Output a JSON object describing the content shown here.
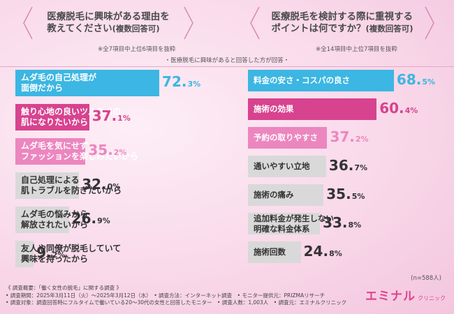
{
  "left": {
    "question_line1": "医療脱毛に興味がある理由を",
    "question_line2": "教えてください",
    "question_suffix": "(複数回答可)",
    "note": "※全7項目中上位6項目を抜粋"
  },
  "right": {
    "question_line1": "医療脱毛を検討する際に重視する",
    "question_line2": "ポイントは何ですか？",
    "question_suffix": "(複数回答可)",
    "note": "※全14項目中上位7項目を抜粋"
  },
  "respondent_note": "・医療脱毛に興味があると回答した方が回答・",
  "n_label": "(n=588人)",
  "footer": {
    "line1": "《 調査概要：「働く女性の脱毛」に関する調査 》",
    "line2": "• 調査期間：2025年3月11日（火）～2025年3月12日（水）　• 調査方法：インターネット調査　• モニター提供元：PRIZMAリサーチ",
    "line3": "• 調査対象：調査回答時にフルタイムで働いている20～30代の女性と回答したモニター　• 調査人数：1,003人　• 調査元：エミナルクリニック"
  },
  "logo": {
    "main": "エミナル",
    "sub": "クリニック"
  },
  "colors": {
    "blue": "#3cb6e2",
    "pink_dark": "#d7438f",
    "pink_light": "#ec86bf",
    "gray": "#d9d9d9",
    "accent": "#e0428f"
  },
  "chart_data": [
    {
      "type": "bar",
      "orientation": "horizontal",
      "title": "医療脱毛に興味がある理由を教えてください(複数回答可)",
      "unit": "%",
      "categories": [
        "ムダ毛の自己処理が面倒だから",
        "触り心地の良いツルスベの肌になりたいから",
        "ムダ毛を気にせずファッションを楽しみたいから",
        "自己処理による肌トラブルを防ぎたいから",
        "ムダ毛の悩みから解放されたいから",
        "友人や同僚が脱毛していて興味を持ったから"
      ],
      "values": [
        72.3,
        37.1,
        35.2,
        32.0,
        26.9,
        9.2
      ],
      "display_lines": [
        [
          "ムダ毛の自己処理が",
          "面倒だから"
        ],
        [
          "触り心地の良いツルスベの",
          "肌になりたいから"
        ],
        [
          "ムダ毛を気にせず",
          "ファッションを楽しみたいから"
        ],
        [
          "自己処理による",
          "肌トラブルを防ぎたいから"
        ],
        [
          "ムダ毛の悩みから",
          "解放されたいから"
        ],
        [
          "友人や同僚が脱毛していて",
          "興味を持ったから"
        ]
      ],
      "value_labels": [
        [
          "72.",
          "3%"
        ],
        [
          "37.",
          "1%"
        ],
        [
          "35.",
          "2%"
        ],
        [
          "32.",
          "0%"
        ],
        [
          "26.",
          "9%"
        ],
        [
          "9.",
          "2%"
        ]
      ],
      "bar_colors": [
        "blue",
        "pink_dark",
        "pink_light",
        "gray",
        "gray",
        "gray"
      ]
    },
    {
      "type": "bar",
      "orientation": "horizontal",
      "title": "医療脱毛を検討する際に重視するポイントは何ですか？(複数回答可)",
      "unit": "%",
      "categories": [
        "料金の安さ・コスパの良さ",
        "施術の効果",
        "予約の取りやすさ",
        "通いやすい立地",
        "施術の痛み",
        "追加料金が発生しない明確な料金体系",
        "施術回数"
      ],
      "values": [
        68.5,
        60.4,
        37.2,
        36.7,
        35.5,
        33.8,
        24.8
      ],
      "display_lines": [
        [
          "料金の安さ・コスパの良さ"
        ],
        [
          "施術の効果"
        ],
        [
          "予約の取りやすさ"
        ],
        [
          "通いやすい立地"
        ],
        [
          "施術の痛み"
        ],
        [
          "追加料金が発生しない",
          "明確な料金体系"
        ],
        [
          "施術回数"
        ]
      ],
      "value_labels": [
        [
          "68.",
          "5%"
        ],
        [
          "60.",
          "4%"
        ],
        [
          "37.",
          "2%"
        ],
        [
          "36.",
          "7%"
        ],
        [
          "35.",
          "5%"
        ],
        [
          "33.",
          "8%"
        ],
        [
          "24.",
          "8%"
        ]
      ],
      "bar_colors": [
        "blue",
        "pink_dark",
        "pink_light",
        "gray",
        "gray",
        "gray",
        "gray"
      ]
    }
  ]
}
